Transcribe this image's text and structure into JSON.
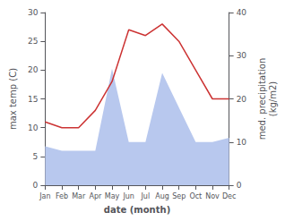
{
  "chart_data": {
    "type": "line",
    "xlabel": "date (month)",
    "ylabel": "max temp (C)",
    "y2label": "med. precipitation\n(kg/m2)",
    "categories": [
      "Jan",
      "Feb",
      "Mar",
      "Apr",
      "May",
      "Jun",
      "Jul",
      "Aug",
      "Sep",
      "Oct",
      "Nov",
      "Dec"
    ],
    "series": [
      {
        "type": "area",
        "color": "#b8c8ee",
        "axis": "y2",
        "values": [
          9,
          8,
          8,
          8,
          27,
          10,
          10,
          26,
          18,
          10,
          10,
          11
        ]
      },
      {
        "type": "line",
        "color": "#cc3333",
        "values": [
          11,
          10,
          10,
          13,
          18,
          27,
          26,
          28,
          25,
          20,
          15,
          15
        ]
      }
    ],
    "ylim": [
      0,
      30
    ],
    "yticks": [
      0,
      5,
      10,
      15,
      20,
      25,
      30
    ],
    "y2lim": [
      0,
      40
    ],
    "y2ticks": [
      0,
      10,
      20,
      30,
      40
    ],
    "grid": false
  }
}
